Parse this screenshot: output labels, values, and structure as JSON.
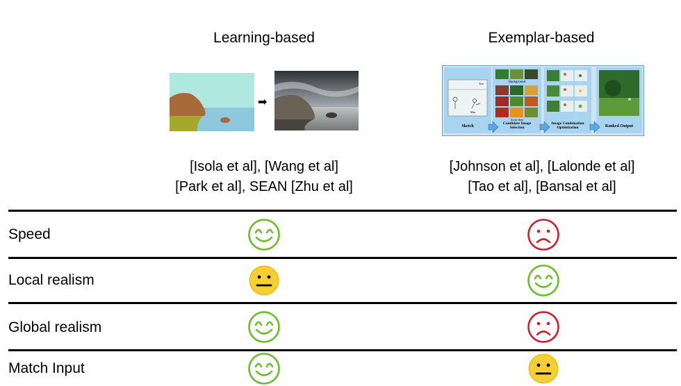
{
  "columns": [
    {
      "title": "Learning-based",
      "cites_line1": "[Isola et al], [Wang et al]",
      "cites_line2": "[Park et al], SEAN [Zhu et al]"
    },
    {
      "title": "Exemplar-based",
      "cites_line1": "[Johnson et al], [Lalonde et al]",
      "cites_line2": "[Tao et al], [Bansal et al]"
    }
  ],
  "arrow": "➡",
  "pipeline": {
    "scene_item": "Scene Item",
    "background": "Background",
    "tree": "Tree",
    "man": "Man",
    "stages": [
      "Sketch",
      "Candidate Image Selection",
      "Image Combination Optimization",
      "Ranked Output"
    ]
  },
  "rows": [
    {
      "label": "Speed",
      "learning": "happy",
      "exemplar": "sad"
    },
    {
      "label": "Local realism",
      "learning": "neutral",
      "exemplar": "happy"
    },
    {
      "label": "Global realism",
      "learning": "happy",
      "exemplar": "sad"
    },
    {
      "label": "Match Input",
      "learning": "happy",
      "exemplar": "neutral"
    }
  ],
  "colors": {
    "happy": "#6bbd2a",
    "sad": "#cf1f2e",
    "neutral": "#f2b90f"
  }
}
